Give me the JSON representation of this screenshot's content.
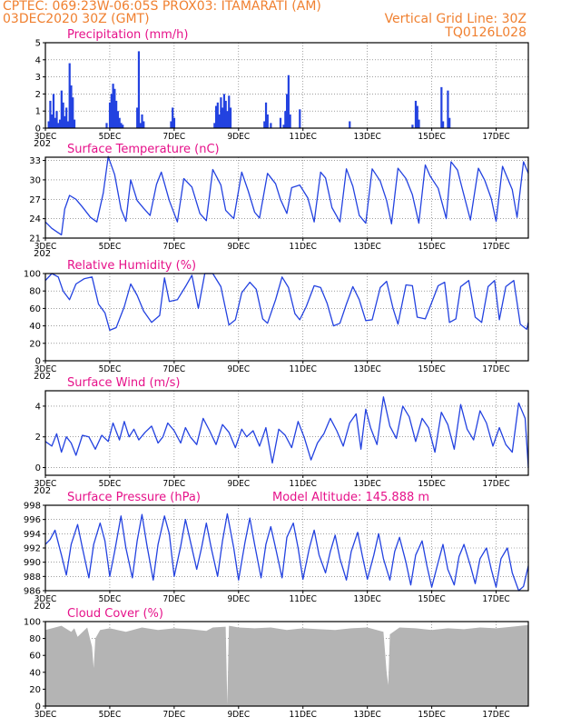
{
  "header": {
    "line1": "CPTEC:   069:23W-06:05S   PROX03: ITAMARATI (AM)",
    "line2": "03DEC2020 30Z (GMT)",
    "grid_note": "Vertical Grid Line: 30Z",
    "model_code": "TQ0126L028"
  },
  "x_axis": {
    "start_day": 3,
    "end_day": 18,
    "labels": [
      "3DEC",
      "5DEC",
      "7DEC",
      "9DEC",
      "11DEC",
      "13DEC",
      "15DEC",
      "17DEC"
    ],
    "label_days": [
      3,
      5,
      7,
      9,
      11,
      13,
      15,
      17
    ],
    "year_fragment": "202"
  },
  "colors": {
    "series": "#2342e0",
    "title": "#e6128a",
    "cloud": "#b4b4b4",
    "grid": "#666666",
    "header": "#f08030"
  },
  "chart_data": [
    {
      "id": "precip",
      "type": "bar",
      "title": "Precipitation (mm/h)",
      "ylim": [
        0,
        5
      ],
      "yticks": [
        0,
        1,
        2,
        3,
        4,
        5
      ],
      "x": [
        3.1,
        3.15,
        3.2,
        3.25,
        3.3,
        3.35,
        3.4,
        3.45,
        3.5,
        3.55,
        3.6,
        3.65,
        3.7,
        3.75,
        3.8,
        3.85,
        3.9,
        4.9,
        5.0,
        5.05,
        5.1,
        5.15,
        5.2,
        5.25,
        5.3,
        5.35,
        5.4,
        5.85,
        5.9,
        5.95,
        6.0,
        6.05,
        6.9,
        6.95,
        7.0,
        8.25,
        8.3,
        8.35,
        8.4,
        8.45,
        8.5,
        8.55,
        8.6,
        8.65,
        8.7,
        8.75,
        9.8,
        9.85,
        9.9,
        10.0,
        10.3,
        10.4,
        10.45,
        10.5,
        10.55,
        10.6,
        10.9,
        12.45,
        14.4,
        14.5,
        14.55,
        14.6,
        15.3,
        15.35,
        15.5,
        15.55
      ],
      "values": [
        0.4,
        1.6,
        0.8,
        2.0,
        0.6,
        1.0,
        0.3,
        0.5,
        2.2,
        1.5,
        0.7,
        1.2,
        0.4,
        3.8,
        2.5,
        1.8,
        0.5,
        0.3,
        1.5,
        2.0,
        2.6,
        2.3,
        1.6,
        1.0,
        0.6,
        0.3,
        0.2,
        1.2,
        4.5,
        0.3,
        0.8,
        0.4,
        0.4,
        1.2,
        0.6,
        0.3,
        1.3,
        1.5,
        0.8,
        1.8,
        1.2,
        2.0,
        1.6,
        1.0,
        1.9,
        1.2,
        0.4,
        1.5,
        0.8,
        0.3,
        0.6,
        0.2,
        1.0,
        2.0,
        3.1,
        0.8,
        1.1,
        0.4,
        0.2,
        1.6,
        1.3,
        0.5,
        2.4,
        0.4,
        2.2,
        0.6
      ]
    },
    {
      "id": "temp",
      "type": "line",
      "title": "Surface Temperature (nC)",
      "ylim": [
        21,
        33.5
      ],
      "yticks": [
        21,
        24,
        27,
        30,
        33
      ],
      "x": [
        3.0,
        3.2,
        3.35,
        3.5,
        3.6,
        3.75,
        3.95,
        4.15,
        4.4,
        4.6,
        4.8,
        4.95,
        5.15,
        5.35,
        5.5,
        5.65,
        5.85,
        6.05,
        6.25,
        6.45,
        6.6,
        6.85,
        7.1,
        7.3,
        7.55,
        7.8,
        8.0,
        8.2,
        8.45,
        8.6,
        8.85,
        9.1,
        9.3,
        9.5,
        9.65,
        9.9,
        10.15,
        10.3,
        10.5,
        10.65,
        10.9,
        11.15,
        11.35,
        11.55,
        11.7,
        11.9,
        12.15,
        12.35,
        12.55,
        12.75,
        12.95,
        13.15,
        13.4,
        13.6,
        13.75,
        13.95,
        14.2,
        14.4,
        14.6,
        14.8,
        14.95,
        15.2,
        15.45,
        15.6,
        15.8,
        15.95,
        16.2,
        16.45,
        16.65,
        16.85,
        17.0,
        17.2,
        17.5,
        17.65,
        17.85,
        18.0
      ],
      "values": [
        23.5,
        22.5,
        22.0,
        21.5,
        25.5,
        27.6,
        27.0,
        25.8,
        24.2,
        23.5,
        28.0,
        33.6,
        30.8,
        25.5,
        23.6,
        30.0,
        26.8,
        25.6,
        24.5,
        29.3,
        31.2,
        26.8,
        23.5,
        30.2,
        28.9,
        24.8,
        23.7,
        31.6,
        29.2,
        25.3,
        24.0,
        31.2,
        28.3,
        25.0,
        24.1,
        31.0,
        29.4,
        27.0,
        24.8,
        28.8,
        29.2,
        27.2,
        23.5,
        31.2,
        30.3,
        25.7,
        23.5,
        31.7,
        29.0,
        24.5,
        23.3,
        31.7,
        29.8,
        26.8,
        23.2,
        31.8,
        30.2,
        27.7,
        23.3,
        32.3,
        30.6,
        28.7,
        24.0,
        32.8,
        31.5,
        28.6,
        23.8,
        31.8,
        29.9,
        27.1,
        23.6,
        32.1,
        28.5,
        24.2,
        32.8,
        31.0
      ]
    },
    {
      "id": "rh",
      "type": "line",
      "title": "Relative Humidity (%)",
      "ylim": [
        0,
        100
      ],
      "yticks": [
        0,
        20,
        40,
        60,
        80,
        100
      ],
      "x": [
        3.0,
        3.2,
        3.4,
        3.55,
        3.75,
        3.95,
        4.2,
        4.45,
        4.65,
        4.85,
        5.0,
        5.2,
        5.45,
        5.65,
        5.85,
        6.05,
        6.3,
        6.55,
        6.7,
        6.85,
        7.1,
        7.35,
        7.55,
        7.75,
        7.95,
        8.2,
        8.45,
        8.7,
        8.9,
        9.1,
        9.35,
        9.55,
        9.75,
        9.9,
        10.15,
        10.35,
        10.55,
        10.75,
        10.9,
        11.1,
        11.35,
        11.55,
        11.75,
        11.95,
        12.15,
        12.35,
        12.55,
        12.75,
        12.95,
        13.15,
        13.4,
        13.6,
        13.8,
        13.95,
        14.2,
        14.4,
        14.55,
        14.8,
        14.95,
        15.2,
        15.4,
        15.55,
        15.75,
        15.9,
        16.15,
        16.35,
        16.55,
        16.75,
        16.95,
        17.1,
        17.3,
        17.55,
        17.75,
        17.95,
        18.0
      ],
      "values": [
        92,
        100,
        96,
        80,
        70,
        88,
        94,
        96,
        65,
        55,
        35,
        38,
        62,
        88,
        75,
        57,
        44,
        52,
        95,
        68,
        70,
        85,
        98,
        60,
        100,
        100,
        85,
        41,
        47,
        78,
        90,
        82,
        48,
        43,
        70,
        96,
        84,
        54,
        47,
        62,
        86,
        84,
        66,
        40,
        43,
        65,
        85,
        70,
        46,
        47,
        84,
        91,
        60,
        42,
        87,
        86,
        50,
        48,
        62,
        86,
        90,
        44,
        48,
        85,
        92,
        50,
        44,
        85,
        92,
        47,
        85,
        92,
        42,
        36,
        44
      ]
    },
    {
      "id": "wind",
      "type": "line",
      "title": "Surface Wind (m/s)",
      "ylim": [
        -0.5,
        5
      ],
      "yticks": [
        0,
        2,
        4
      ],
      "x": [
        3.0,
        3.2,
        3.35,
        3.5,
        3.65,
        3.8,
        3.95,
        4.15,
        4.35,
        4.55,
        4.75,
        4.95,
        5.1,
        5.3,
        5.45,
        5.6,
        5.75,
        5.9,
        6.1,
        6.3,
        6.5,
        6.65,
        6.8,
        7.0,
        7.2,
        7.35,
        7.5,
        7.7,
        7.9,
        8.1,
        8.3,
        8.5,
        8.7,
        8.9,
        9.1,
        9.25,
        9.45,
        9.65,
        9.85,
        10.05,
        10.25,
        10.45,
        10.65,
        10.85,
        11.05,
        11.25,
        11.45,
        11.65,
        11.85,
        12.05,
        12.25,
        12.45,
        12.65,
        12.8,
        12.95,
        13.1,
        13.3,
        13.5,
        13.7,
        13.9,
        14.1,
        14.3,
        14.5,
        14.7,
        14.9,
        15.1,
        15.3,
        15.5,
        15.7,
        15.9,
        16.1,
        16.3,
        16.5,
        16.7,
        16.9,
        17.1,
        17.3,
        17.5,
        17.7,
        17.9,
        18.0
      ],
      "values": [
        1.7,
        1.4,
        2.2,
        1.0,
        2.0,
        1.6,
        0.8,
        2.1,
        2.0,
        1.2,
        2.1,
        1.7,
        2.9,
        1.8,
        3.0,
        2.0,
        2.5,
        1.8,
        2.3,
        2.7,
        1.6,
        2.0,
        2.9,
        2.4,
        1.6,
        2.6,
        2.0,
        1.5,
        3.2,
        2.4,
        1.5,
        2.8,
        2.3,
        1.3,
        2.5,
        2.0,
        2.4,
        1.4,
        2.6,
        0.3,
        2.5,
        2.1,
        1.3,
        3.0,
        1.9,
        0.5,
        1.6,
        2.2,
        3.2,
        2.4,
        1.4,
        2.9,
        3.5,
        1.2,
        3.8,
        2.6,
        1.5,
        4.6,
        2.7,
        1.9,
        4.0,
        3.3,
        1.7,
        3.2,
        2.6,
        1.0,
        3.6,
        2.8,
        1.2,
        4.1,
        2.5,
        1.8,
        3.7,
        2.9,
        1.4,
        2.6,
        1.5,
        1.0,
        4.2,
        3.2,
        0.0
      ]
    },
    {
      "id": "pres",
      "type": "line",
      "title": "Surface Pressure (hPa)",
      "annotation": "Model Altitude: 145.888  m",
      "ylim": [
        986,
        998
      ],
      "yticks": [
        986,
        988,
        990,
        992,
        994,
        996,
        998
      ],
      "x": [
        3.0,
        3.15,
        3.3,
        3.5,
        3.65,
        3.8,
        4.0,
        4.15,
        4.35,
        4.5,
        4.7,
        4.85,
        5.0,
        5.15,
        5.35,
        5.5,
        5.7,
        5.85,
        6.0,
        6.15,
        6.35,
        6.5,
        6.7,
        6.85,
        7.0,
        7.2,
        7.35,
        7.5,
        7.7,
        7.85,
        8.0,
        8.15,
        8.35,
        8.5,
        8.65,
        8.85,
        9.0,
        9.2,
        9.35,
        9.5,
        9.7,
        9.85,
        10.0,
        10.15,
        10.35,
        10.5,
        10.7,
        10.85,
        11.0,
        11.2,
        11.35,
        11.5,
        11.7,
        11.85,
        12.0,
        12.15,
        12.35,
        12.5,
        12.7,
        12.85,
        13.0,
        13.2,
        13.35,
        13.5,
        13.7,
        13.85,
        14.0,
        14.2,
        14.35,
        14.5,
        14.7,
        14.85,
        15.0,
        15.2,
        15.35,
        15.5,
        15.7,
        15.85,
        16.0,
        16.2,
        16.35,
        16.5,
        16.7,
        16.85,
        17.0,
        17.15,
        17.35,
        17.5,
        17.7,
        17.85,
        18.0
      ],
      "values": [
        992.5,
        993.2,
        994.5,
        991.0,
        988.2,
        992.5,
        995.3,
        992.0,
        987.8,
        992.5,
        995.5,
        993.0,
        988.0,
        991.5,
        996.5,
        992.0,
        987.8,
        993.0,
        996.7,
        992.5,
        987.5,
        992.5,
        996.5,
        994.0,
        988.0,
        992.2,
        996.0,
        993.0,
        989.0,
        992.0,
        995.5,
        992.0,
        988.0,
        993.0,
        996.8,
        992.0,
        987.5,
        992.8,
        996.2,
        992.5,
        987.8,
        992.5,
        995.0,
        992.0,
        987.8,
        993.5,
        995.5,
        992.0,
        987.6,
        992.0,
        994.5,
        991.0,
        988.5,
        991.5,
        993.8,
        990.5,
        987.5,
        991.5,
        994.2,
        990.8,
        987.6,
        991.0,
        994.0,
        990.5,
        987.5,
        991.5,
        993.5,
        990.0,
        986.8,
        991.0,
        993.0,
        989.5,
        986.5,
        990.0,
        992.5,
        989.0,
        986.8,
        990.8,
        992.5,
        989.5,
        987.0,
        990.5,
        992.0,
        989.0,
        986.5,
        990.5,
        992.0,
        988.5,
        986.0,
        986.6,
        989.5
      ]
    },
    {
      "id": "cloud",
      "type": "area",
      "title": "Cloud Cover (%)",
      "ylim": [
        0,
        100
      ],
      "yticks": [
        0,
        20,
        40,
        60,
        80,
        100
      ],
      "x": [
        3.0,
        3.5,
        3.8,
        3.9,
        4.0,
        4.3,
        4.45,
        4.5,
        4.55,
        4.7,
        5.0,
        5.5,
        6.0,
        6.5,
        7.0,
        7.5,
        8.0,
        8.2,
        8.6,
        8.65,
        8.7,
        9.0,
        9.5,
        10.0,
        10.5,
        11.0,
        11.5,
        12.0,
        12.5,
        13.0,
        13.5,
        13.6,
        13.65,
        13.7,
        14.0,
        14.5,
        15.0,
        15.5,
        16.0,
        16.5,
        17.0,
        17.5,
        18.0
      ],
      "values": [
        90,
        95,
        88,
        92,
        82,
        93,
        70,
        45,
        80,
        90,
        92,
        88,
        93,
        90,
        92,
        91,
        89,
        93,
        94,
        2,
        95,
        93,
        92,
        93,
        90,
        92,
        91,
        90,
        92,
        93,
        88,
        40,
        25,
        85,
        93,
        92,
        90,
        92,
        91,
        93,
        92,
        94,
        96
      ]
    }
  ]
}
